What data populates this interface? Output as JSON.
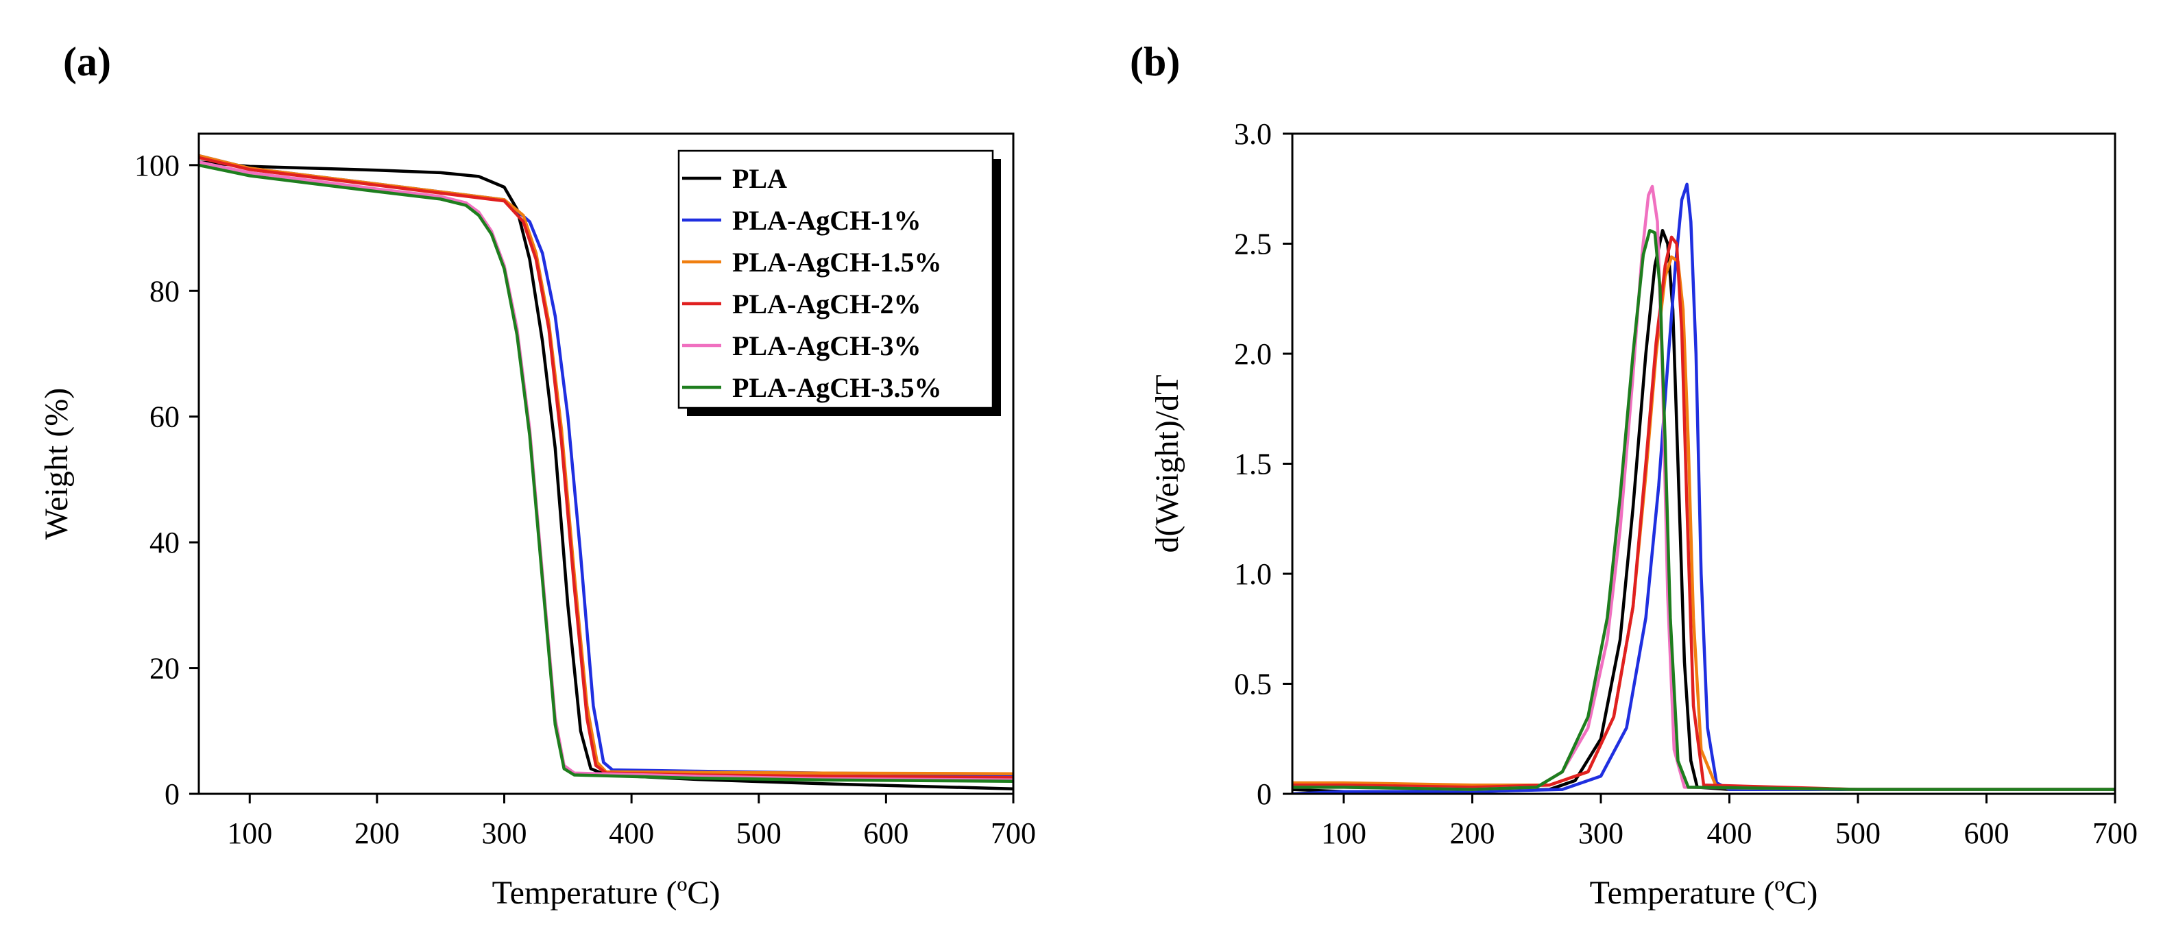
{
  "chart_data": [
    {
      "panel": "(a)",
      "type": "line",
      "xlabel": "Temperature (ºC)",
      "ylabel": "Weight (%)",
      "xlim": [
        60,
        700
      ],
      "ylim": [
        0,
        105
      ],
      "xticks": [
        100,
        200,
        300,
        400,
        500,
        600,
        700
      ],
      "yticks": [
        0,
        20,
        40,
        60,
        80,
        100
      ],
      "legend": {
        "position": "top-right",
        "entries": [
          "PLA",
          "PLA-AgCH-1%",
          "PLA-AgCH-1.5%",
          "PLA-AgCH-2%",
          "PLA-AgCH-3%",
          "PLA-AgCH-3.5%"
        ]
      },
      "series": [
        {
          "name": "PLA",
          "color": "#000000",
          "x": [
            60,
            100,
            200,
            250,
            280,
            300,
            310,
            320,
            330,
            340,
            350,
            360,
            368,
            380,
            450,
            550,
            700
          ],
          "y": [
            100.5,
            99.8,
            99.2,
            98.8,
            98.2,
            96.5,
            93,
            85,
            72,
            55,
            30,
            10,
            4,
            3.0,
            2.3,
            1.6,
            0.8
          ]
        },
        {
          "name": "PLA-AgCH-1%",
          "color": "#1f2fe0",
          "x": [
            60,
            100,
            200,
            260,
            300,
            320,
            330,
            340,
            350,
            360,
            370,
            378,
            385,
            450,
            550,
            700
          ],
          "y": [
            101.5,
            99.5,
            97,
            95.5,
            94.5,
            91,
            86,
            76,
            60,
            38,
            14,
            5,
            3.8,
            3.6,
            3.3,
            3.0
          ]
        },
        {
          "name": "PLA-AgCH-1.5%",
          "color": "#f07f10",
          "x": [
            60,
            100,
            200,
            260,
            300,
            315,
            325,
            335,
            345,
            355,
            365,
            373,
            380,
            450,
            550,
            700
          ],
          "y": [
            101.5,
            99.5,
            97,
            95.5,
            94.5,
            92,
            86,
            75,
            58,
            35,
            14,
            5,
            3.5,
            3.4,
            3.3,
            3.2
          ]
        },
        {
          "name": "PLA-AgCH-2%",
          "color": "#e02020",
          "x": [
            60,
            100,
            200,
            260,
            300,
            315,
            325,
            335,
            345,
            355,
            365,
            372,
            380,
            450,
            550,
            700
          ],
          "y": [
            101.2,
            99.3,
            96.8,
            95.3,
            94.3,
            91,
            85,
            74,
            56,
            33,
            12,
            4.5,
            3.3,
            3.0,
            2.8,
            2.6
          ]
        },
        {
          "name": "PLA-AgCH-3%",
          "color": "#f070c0",
          "x": [
            60,
            100,
            200,
            250,
            270,
            280,
            290,
            300,
            310,
            320,
            330,
            340,
            347,
            355,
            450,
            550,
            700
          ],
          "y": [
            100.5,
            98.8,
            96.2,
            95,
            94,
            92.5,
            89.5,
            84,
            74,
            58,
            35,
            12,
            4.5,
            3.3,
            2.8,
            2.4,
            2.2
          ]
        },
        {
          "name": "PLA-AgCH-3.5%",
          "color": "#1e7e1e",
          "x": [
            60,
            100,
            200,
            250,
            270,
            280,
            290,
            300,
            310,
            320,
            330,
            340,
            347,
            355,
            450,
            550,
            700
          ],
          "y": [
            100,
            98.3,
            95.8,
            94.6,
            93.6,
            92,
            89,
            83.5,
            73,
            57,
            34,
            11,
            4,
            3.0,
            2.5,
            2.2,
            2.0
          ]
        }
      ]
    },
    {
      "panel": "(b)",
      "type": "line",
      "xlabel": "Temperature (ºC)",
      "ylabel": "d(Weight)/dT",
      "xlim": [
        60,
        700
      ],
      "ylim": [
        0,
        3.0
      ],
      "xticks": [
        100,
        200,
        300,
        400,
        500,
        600,
        700
      ],
      "yticks": [
        0,
        0.5,
        1.0,
        1.5,
        2.0,
        2.5,
        3.0
      ],
      "ytick_labels": [
        "0",
        "0.5",
        "1.0",
        "1.5",
        "2.0",
        "2.5",
        "3.0"
      ],
      "series": [
        {
          "name": "PLA",
          "color": "#000000",
          "x": [
            60,
            100,
            200,
            260,
            280,
            300,
            315,
            325,
            335,
            342,
            348,
            352,
            356,
            360,
            365,
            370,
            375,
            400,
            500,
            700
          ],
          "y": [
            0.02,
            0.01,
            0.01,
            0.02,
            0.06,
            0.25,
            0.7,
            1.3,
            2.0,
            2.4,
            2.56,
            2.5,
            2.2,
            1.5,
            0.6,
            0.15,
            0.03,
            0.02,
            0.02,
            0.02
          ]
        },
        {
          "name": "PLA-AgCH-1%",
          "color": "#1f2fe0",
          "x": [
            60,
            100,
            200,
            270,
            300,
            320,
            335,
            345,
            352,
            358,
            363,
            367,
            370,
            374,
            378,
            383,
            390,
            400,
            500,
            700
          ],
          "y": [
            0.0,
            0.01,
            0.01,
            0.02,
            0.08,
            0.3,
            0.8,
            1.4,
            1.95,
            2.4,
            2.7,
            2.77,
            2.6,
            2.0,
            1.0,
            0.3,
            0.05,
            0.02,
            0.02,
            0.02
          ]
        },
        {
          "name": "PLA-AgCH-1.5%",
          "color": "#f07f10",
          "x": [
            60,
            100,
            200,
            260,
            290,
            310,
            325,
            335,
            343,
            350,
            355,
            360,
            364,
            368,
            372,
            378,
            390,
            500,
            700
          ],
          "y": [
            0.05,
            0.05,
            0.04,
            0.04,
            0.1,
            0.35,
            0.85,
            1.45,
            2.0,
            2.35,
            2.44,
            2.42,
            2.2,
            1.6,
            0.8,
            0.2,
            0.03,
            0.02,
            0.02
          ]
        },
        {
          "name": "PLA-AgCH-2%",
          "color": "#e02020",
          "x": [
            60,
            100,
            200,
            260,
            290,
            310,
            325,
            335,
            343,
            350,
            355,
            359,
            363,
            367,
            372,
            380,
            500,
            700
          ],
          "y": [
            0.04,
            0.04,
            0.03,
            0.04,
            0.1,
            0.35,
            0.85,
            1.5,
            2.05,
            2.4,
            2.53,
            2.5,
            2.1,
            1.3,
            0.4,
            0.04,
            0.02,
            0.02
          ]
        },
        {
          "name": "PLA-AgCH-3%",
          "color": "#f070c0",
          "x": [
            60,
            100,
            200,
            250,
            270,
            290,
            305,
            315,
            325,
            332,
            337,
            340,
            344,
            348,
            352,
            357,
            365,
            500,
            700
          ],
          "y": [
            0.03,
            0.03,
            0.02,
            0.03,
            0.1,
            0.3,
            0.7,
            1.2,
            1.9,
            2.45,
            2.72,
            2.76,
            2.6,
            1.9,
            0.9,
            0.2,
            0.03,
            0.02,
            0.02
          ]
        },
        {
          "name": "PLA-AgCH-3.5%",
          "color": "#1e7e1e",
          "x": [
            60,
            100,
            200,
            250,
            270,
            290,
            305,
            315,
            325,
            333,
            338,
            342,
            346,
            350,
            354,
            360,
            368,
            500,
            700
          ],
          "y": [
            0.03,
            0.03,
            0.02,
            0.03,
            0.1,
            0.35,
            0.8,
            1.35,
            2.0,
            2.45,
            2.56,
            2.55,
            2.3,
            1.6,
            0.8,
            0.15,
            0.03,
            0.02,
            0.02
          ]
        }
      ]
    }
  ]
}
